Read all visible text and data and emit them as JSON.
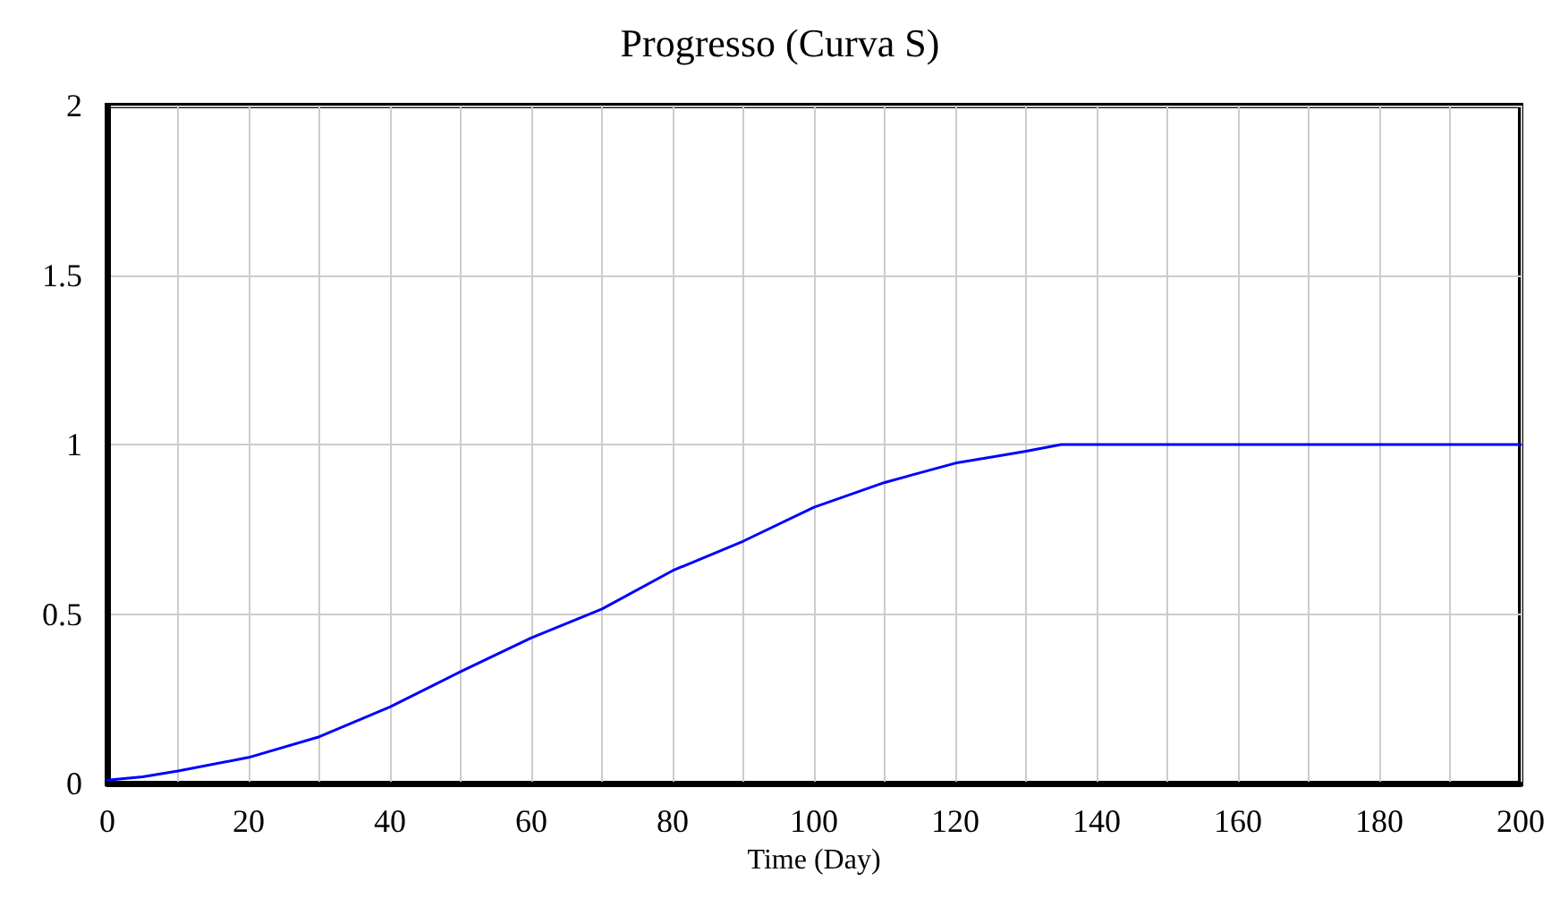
{
  "chart_data": {
    "type": "line",
    "title": "Progresso (Curva S)",
    "xlabel": "Time (Day)",
    "x": [
      0,
      5,
      10,
      20,
      30,
      40,
      50,
      60,
      70,
      80,
      90,
      100,
      110,
      120,
      130,
      135,
      140,
      160,
      180,
      200
    ],
    "series": [
      {
        "color": "#0000ff",
        "values": [
          0.01,
          0.02,
          0.037,
          0.077,
          0.138,
          0.226,
          0.33,
          0.43,
          0.515,
          0.628,
          0.715,
          0.815,
          0.888,
          0.945,
          0.98,
          1,
          1,
          1,
          1,
          1
        ]
      }
    ],
    "xlim": [
      0,
      200
    ],
    "xticks": [
      0,
      20,
      40,
      60,
      80,
      100,
      120,
      140,
      160,
      180,
      200
    ],
    "ylim": [
      0,
      2
    ],
    "yticks": [
      0,
      0.5,
      1,
      1.5,
      2
    ],
    "grid": true,
    "marker": "none",
    "line_style": "solid"
  }
}
